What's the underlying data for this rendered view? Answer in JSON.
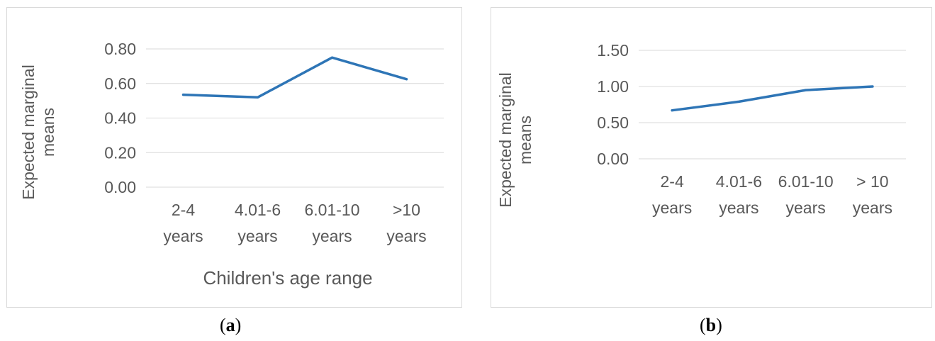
{
  "chart_data": [
    {
      "type": "line",
      "panel_label": "a",
      "categories": [
        [
          "2-4",
          "years"
        ],
        [
          "4.01-6",
          "years"
        ],
        [
          "6.01-10",
          "years"
        ],
        [
          ">10",
          "years"
        ]
      ],
      "series": [
        {
          "values": [
            0.535,
            0.52,
            0.75,
            0.625
          ],
          "color": "#2e75b6"
        }
      ],
      "ylim": [
        0,
        0.8
      ],
      "yticks": [
        "0.00",
        "0.20",
        "0.40",
        "0.60",
        "0.80"
      ],
      "ylabel": [
        "Expected marginal",
        "means"
      ],
      "xlabel": "Children's age range",
      "grid": true
    },
    {
      "type": "line",
      "panel_label": "b",
      "categories": [
        [
          "2-4",
          "years"
        ],
        [
          "4.01-6",
          "years"
        ],
        [
          "6.01-10",
          "years"
        ],
        [
          "> 10",
          "years"
        ]
      ],
      "series": [
        {
          "values": [
            0.67,
            0.79,
            0.95,
            1.0
          ],
          "color": "#2e75b6"
        }
      ],
      "ylim": [
        0,
        1.5
      ],
      "yticks": [
        "0.00",
        "0.50",
        "1.00",
        "1.50"
      ],
      "ylabel": [
        "Expected marginal",
        "means"
      ],
      "xlabel": "",
      "grid": true
    }
  ],
  "colors": {
    "text": "#595959",
    "grid": "#d9d9d9",
    "line": "#2e75b6"
  }
}
